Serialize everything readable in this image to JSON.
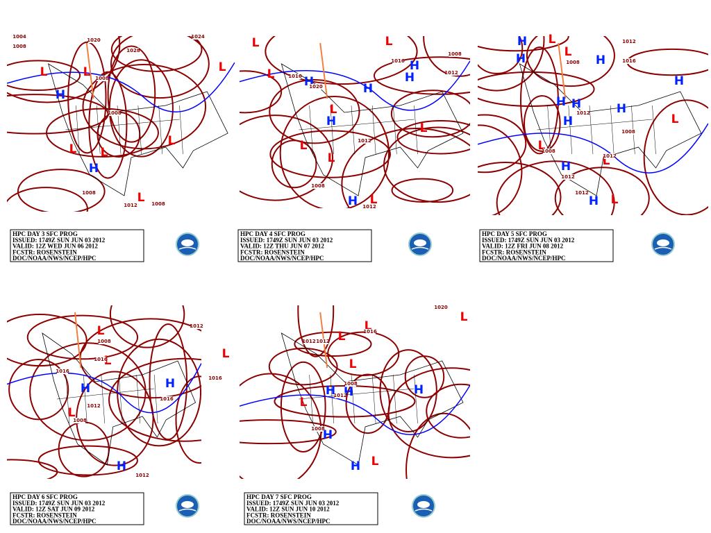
{
  "panels": [
    {
      "info": [
        "HPC DAY 3 SFC PROG",
        "ISSUED: 1749Z SUN JUN 03 2012",
        "VALID: 12Z WED JUN 06 2012",
        "FCSTR: ROSENSTEIN",
        "DOC/NOAA/NWS/NCEP/HPC"
      ],
      "centers": [
        "L",
        "L",
        "H",
        "L",
        "L",
        "H",
        "L",
        "L",
        "L"
      ],
      "isobars": [
        "1004",
        "1008",
        "1020",
        "1028",
        "1024",
        "1008",
        "1008",
        "1008",
        "1012",
        "1008"
      ]
    },
    {
      "info": [
        "HPC DAY 4 SFC PROG",
        "ISSUED: 1749Z SUN JUN 03 2012",
        "VALID: 12Z THU JUN 07 2012",
        "FCSTR: ROSENSTEIN",
        "DOC/NOAA/NWS/NCEP/HPC"
      ],
      "centers": [
        "L",
        "L",
        "H",
        "H",
        "H",
        "H",
        "L",
        "L",
        "H",
        "L",
        "L",
        "L",
        "H",
        "L"
      ],
      "isobars": [
        "1016",
        "1020",
        "1016",
        "1008",
        "1012",
        "1012",
        "1008",
        "1012"
      ]
    },
    {
      "info": [
        "HPC DAY 5 SFC PROG",
        "ISSUED: 1749Z SUN JUN 03 2012",
        "VALID: 12Z FRI JUN 08 2012",
        "FCSTR: ROSENSTEIN",
        "DOC/NOAA/NWS/NCEP/HPC"
      ],
      "centers": [
        "H",
        "H",
        "L",
        "L",
        "H",
        "H",
        "H",
        "H",
        "H",
        "H",
        "L",
        "L",
        "H",
        "L",
        "H",
        "L"
      ],
      "isobars": [
        "1012",
        "1016",
        "1008",
        "1012",
        "1008",
        "1008",
        "1012",
        "1012",
        "1012"
      ]
    },
    {
      "info": [
        "HPC DAY 6 SFC PROG",
        "ISSUED: 1749Z SUN JUN 03 2012",
        "VALID: 12Z SAT JUN 09 2012",
        "FCSTR: ROSENSTEIN",
        "DOC/NOAA/NWS/NCEP/HPC"
      ],
      "centers": [
        "L",
        "L",
        "H",
        "H",
        "L",
        "L",
        "H"
      ],
      "isobars": [
        "1012",
        "1008",
        "1016",
        "1016",
        "1012",
        "1008",
        "1016",
        "1016",
        "1012"
      ]
    },
    {
      "info": [
        "HPC DAY 7 SFC PROG",
        "ISSUED: 1749Z SUN JUN 03 2012",
        "VALID: 12Z SUN JUN 10 2012",
        "FCSTR: ROSENSTEIN",
        "DOC/NOAA/NWS/NCEP/HPC"
      ],
      "centers": [
        "L",
        "L",
        "L",
        "L",
        "H",
        "H",
        "H",
        "L",
        "H",
        "H",
        "L"
      ],
      "isobars": [
        "1020",
        "1012",
        "1012",
        "1008",
        "1016",
        "1008",
        "1012"
      ]
    }
  ]
}
